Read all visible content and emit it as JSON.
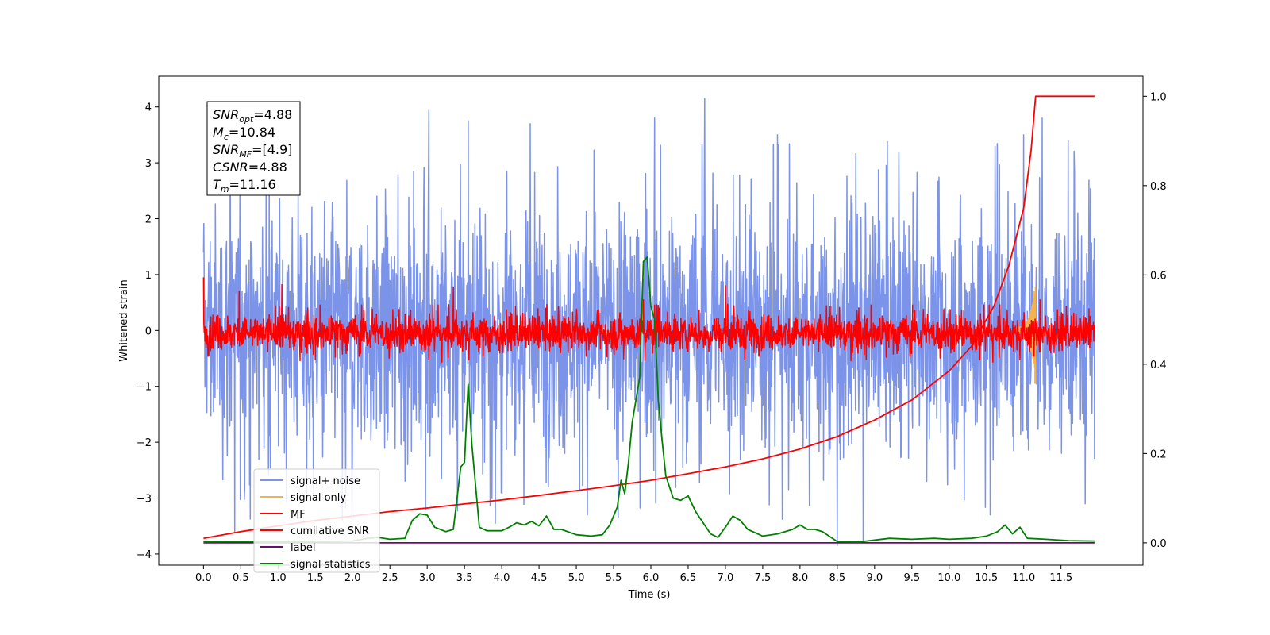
{
  "chart_data": {
    "type": "line",
    "xlabel": "Time (s)",
    "ylabel": "Whitened strain",
    "xlim": [
      -0.6,
      12.6
    ],
    "ylim": [
      -4.2,
      4.55
    ],
    "y2lim": [
      -0.05,
      1.045
    ],
    "xticks": [
      "0.0",
      "0.5",
      "1.0",
      "1.5",
      "2.0",
      "2.5",
      "3.0",
      "3.5",
      "4.0",
      "4.5",
      "5.0",
      "5.5",
      "6.0",
      "6.5",
      "7.0",
      "7.5",
      "8.0",
      "8.5",
      "9.0",
      "9.5",
      "10.0",
      "10.5",
      "11.0",
      "11.5"
    ],
    "yticks": [
      "−4",
      "−3",
      "−2",
      "−1",
      "0",
      "1",
      "2",
      "3",
      "4"
    ],
    "y2ticks": [
      "0.0",
      "0.2",
      "0.4",
      "0.6",
      "0.8",
      "1.0"
    ],
    "grid": false,
    "legend_position": "lower-left",
    "annotation": {
      "lines": [
        {
          "sym": "SNR",
          "sub": "opt",
          "rest": "=4.88"
        },
        {
          "sym": "M",
          "sub": "c",
          "rest": "=10.84"
        },
        {
          "sym": "SNR",
          "sub": "MF",
          "rest": "=[4.9]"
        },
        {
          "sym": "CSNR",
          "sub": "",
          "rest": "=4.88"
        },
        {
          "sym": "T",
          "sub": "m",
          "rest": "=11.16"
        }
      ]
    },
    "series": [
      {
        "name": "signal+ noise",
        "color": "#7b93e8",
        "axis": "left",
        "kind": "noise",
        "center": 0.0,
        "envelope": 1.2,
        "peak_points": [
          [
            0.36,
            3.9
          ],
          [
            0.42,
            -3.6
          ],
          [
            3.02,
            3.95
          ],
          [
            3.55,
            3.75
          ],
          [
            4.38,
            3.7
          ],
          [
            5.15,
            -3.3
          ],
          [
            6.05,
            3.8
          ],
          [
            6.72,
            4.15
          ],
          [
            7.7,
            3.5
          ],
          [
            8.5,
            -3.85
          ],
          [
            8.85,
            -3.75
          ],
          [
            11.25,
            3.8
          ],
          [
            11.0,
            3.5
          ],
          [
            10.55,
            -3.3
          ]
        ]
      },
      {
        "name": "signal only",
        "color": "#f5b150",
        "axis": "left",
        "kind": "chirp",
        "end": 11.16,
        "peak": [
          [
            11.14,
            0.7
          ],
          [
            11.16,
            -0.95
          ]
        ]
      },
      {
        "name": "MF",
        "color": "#ff0000",
        "axis": "left",
        "kind": "noise",
        "center": -0.05,
        "envelope": 0.25,
        "peak_points": [
          [
            0.48,
            0.7
          ],
          [
            1.05,
            0.82
          ],
          [
            3.35,
            0.78
          ],
          [
            5.9,
            0.55
          ],
          [
            6.1,
            0.45
          ],
          [
            7.0,
            0.8
          ],
          [
            11.22,
            0.55
          ],
          [
            0.0,
            0.95
          ]
        ]
      },
      {
        "name": "cumilative SNR",
        "color": "#ff0000",
        "axis": "right",
        "kind": "curve",
        "x": [
          0.0,
          0.5,
          1.0,
          1.5,
          2.0,
          2.5,
          3.0,
          3.5,
          4.0,
          4.5,
          5.0,
          5.5,
          6.0,
          6.5,
          7.0,
          7.5,
          8.0,
          8.5,
          9.0,
          9.5,
          10.0,
          10.3,
          10.6,
          10.8,
          11.0,
          11.1,
          11.16,
          11.5,
          11.95
        ],
        "values": [
          0.01,
          0.025,
          0.038,
          0.05,
          0.06,
          0.07,
          0.078,
          0.087,
          0.096,
          0.106,
          0.117,
          0.128,
          0.14,
          0.155,
          0.17,
          0.188,
          0.21,
          0.238,
          0.275,
          0.32,
          0.385,
          0.44,
          0.53,
          0.62,
          0.75,
          0.88,
          1.0,
          1.0,
          1.0
        ]
      },
      {
        "name": "label",
        "color": "#6a0d6a",
        "axis": "right",
        "kind": "curve",
        "x": [
          0.0,
          11.95
        ],
        "values": [
          0.0,
          0.0
        ]
      },
      {
        "name": "signal statistics",
        "color": "#008000",
        "axis": "right",
        "kind": "curve",
        "x": [
          0.0,
          0.3,
          0.6,
          1.0,
          1.5,
          2.0,
          2.2,
          2.35,
          2.5,
          2.7,
          2.8,
          2.9,
          3.0,
          3.1,
          3.25,
          3.35,
          3.45,
          3.5,
          3.55,
          3.6,
          3.7,
          3.8,
          4.0,
          4.1,
          4.2,
          4.3,
          4.4,
          4.5,
          4.6,
          4.7,
          4.8,
          5.0,
          5.2,
          5.35,
          5.45,
          5.55,
          5.6,
          5.65,
          5.7,
          5.75,
          5.8,
          5.85,
          5.9,
          5.95,
          6.0,
          6.05,
          6.1,
          6.15,
          6.2,
          6.3,
          6.4,
          6.5,
          6.6,
          6.7,
          6.8,
          6.9,
          7.0,
          7.1,
          7.2,
          7.3,
          7.5,
          7.7,
          7.9,
          8.0,
          8.1,
          8.2,
          8.3,
          8.5,
          8.8,
          9.2,
          9.5,
          9.8,
          10.0,
          10.3,
          10.5,
          10.65,
          10.75,
          10.85,
          10.95,
          11.05,
          11.3,
          11.6,
          11.95
        ],
        "values": [
          0.002,
          0.003,
          0.003,
          0.002,
          0.003,
          0.004,
          0.01,
          0.012,
          0.008,
          0.01,
          0.05,
          0.065,
          0.062,
          0.035,
          0.025,
          0.03,
          0.17,
          0.18,
          0.355,
          0.22,
          0.035,
          0.027,
          0.027,
          0.035,
          0.045,
          0.04,
          0.048,
          0.038,
          0.06,
          0.03,
          0.03,
          0.018,
          0.015,
          0.018,
          0.04,
          0.08,
          0.14,
          0.11,
          0.18,
          0.27,
          0.32,
          0.37,
          0.63,
          0.64,
          0.53,
          0.5,
          0.32,
          0.23,
          0.15,
          0.1,
          0.095,
          0.105,
          0.07,
          0.045,
          0.02,
          0.012,
          0.035,
          0.06,
          0.05,
          0.03,
          0.015,
          0.02,
          0.03,
          0.04,
          0.03,
          0.03,
          0.025,
          0.003,
          0.002,
          0.01,
          0.008,
          0.01,
          0.008,
          0.01,
          0.015,
          0.025,
          0.04,
          0.02,
          0.035,
          0.01,
          0.008,
          0.005,
          0.004
        ]
      }
    ]
  }
}
